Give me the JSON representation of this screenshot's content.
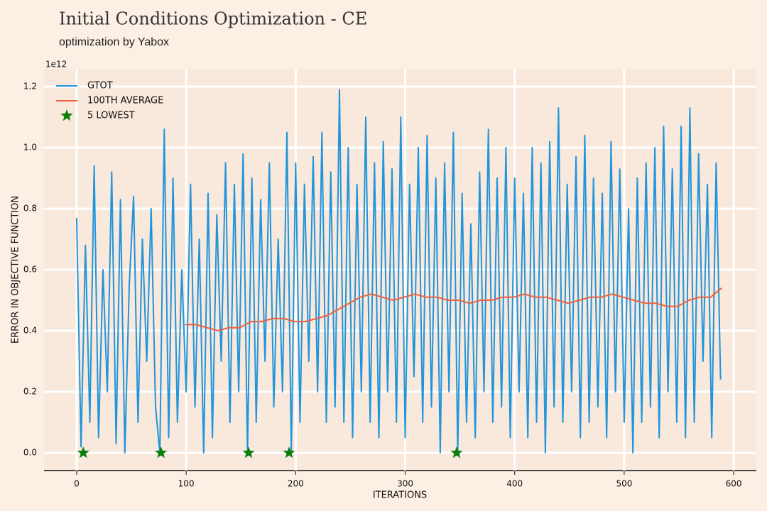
{
  "chart_data": {
    "type": "line",
    "title": "Initial Conditions Optimization - CE",
    "subtitle": "optimization by Yabox",
    "xlabel": "ITERATIONS",
    "ylabel": "ERROR IN OBJECTIVE FUNCTION",
    "y_offset_label": "1e12",
    "xlim": [
      -29.8,
      620.7
    ],
    "ylim": [
      -0.058,
      1.258
    ],
    "xticks": [
      0,
      100,
      200,
      300,
      400,
      500,
      600
    ],
    "yticks": [
      {
        "value": 0,
        "label": "0.0"
      },
      0.2,
      0.4,
      0.6,
      0.8,
      {
        "value": 1,
        "label": "1.0"
      },
      1.2
    ],
    "grid": true,
    "legend": "upper left",
    "series": [
      {
        "name": "GTOT",
        "color": "#1f95dc",
        "x": [
          0,
          4,
          8,
          12,
          16,
          20,
          24,
          28,
          32,
          36,
          40,
          44,
          48,
          52,
          56,
          60,
          64,
          68,
          72,
          76,
          80,
          84,
          88,
          92,
          96,
          100,
          104,
          108,
          112,
          116,
          120,
          124,
          128,
          132,
          136,
          140,
          144,
          148,
          152,
          156,
          160,
          164,
          168,
          172,
          176,
          180,
          184,
          188,
          192,
          196,
          200,
          204,
          208,
          212,
          216,
          220,
          224,
          228,
          232,
          236,
          240,
          244,
          248,
          252,
          256,
          260,
          264,
          268,
          272,
          276,
          280,
          284,
          288,
          292,
          296,
          300,
          304,
          308,
          312,
          316,
          320,
          324,
          328,
          332,
          336,
          340,
          344,
          348,
          352,
          356,
          360,
          364,
          368,
          372,
          376,
          380,
          384,
          388,
          392,
          396,
          400,
          404,
          408,
          412,
          416,
          420,
          424,
          428,
          432,
          436,
          440,
          444,
          448,
          452,
          456,
          460,
          464,
          468,
          472,
          476,
          480,
          484,
          488,
          492,
          496,
          500,
          504,
          508,
          512,
          516,
          520,
          524,
          528,
          532,
          536,
          540,
          544,
          548,
          552,
          556,
          560,
          564,
          568,
          572,
          576,
          580,
          584,
          588
        ],
        "values": [
          0.77,
          0.02,
          0.68,
          0.1,
          0.94,
          0.05,
          0.6,
          0.2,
          0.92,
          0.03,
          0.83,
          0.0,
          0.55,
          0.84,
          0.1,
          0.7,
          0.3,
          0.8,
          0.15,
          0.0,
          1.06,
          0.05,
          0.9,
          0.1,
          0.6,
          0.2,
          0.88,
          0.15,
          0.7,
          0.0,
          0.85,
          0.05,
          0.78,
          0.3,
          0.95,
          0.1,
          0.88,
          0.2,
          0.98,
          0.0,
          0.9,
          0.1,
          0.83,
          0.3,
          0.95,
          0.15,
          0.7,
          0.2,
          1.05,
          0.0,
          0.95,
          0.1,
          0.88,
          0.3,
          0.97,
          0.2,
          1.05,
          0.1,
          0.92,
          0.15,
          1.19,
          0.1,
          1.0,
          0.05,
          0.88,
          0.2,
          1.1,
          0.1,
          0.95,
          0.05,
          1.02,
          0.2,
          0.93,
          0.1,
          1.1,
          0.05,
          0.88,
          0.25,
          1.0,
          0.1,
          1.04,
          0.15,
          0.9,
          0.0,
          0.95,
          0.2,
          1.05,
          0.0,
          0.85,
          0.1,
          0.75,
          0.05,
          0.92,
          0.2,
          1.06,
          0.1,
          0.9,
          0.15,
          1.0,
          0.05,
          0.9,
          0.2,
          0.85,
          0.05,
          1.0,
          0.1,
          0.95,
          0.0,
          1.02,
          0.15,
          1.13,
          0.1,
          0.88,
          0.2,
          0.97,
          0.05,
          1.04,
          0.1,
          0.9,
          0.15,
          0.85,
          0.05,
          1.02,
          0.2,
          0.93,
          0.1,
          0.8,
          0.0,
          0.9,
          0.1,
          0.95,
          0.15,
          1.0,
          0.05,
          1.07,
          0.2,
          0.93,
          0.1,
          1.07,
          0.05,
          1.13,
          0.1,
          0.98,
          0.3,
          0.88,
          0.05,
          0.95,
          0.24
        ]
      },
      {
        "name": "100TH AVERAGE",
        "color": "#f0613d",
        "x": [
          99,
          109,
          119,
          129,
          139,
          149,
          159,
          169,
          179,
          189,
          199,
          209,
          219,
          229,
          239,
          249,
          259,
          269,
          279,
          289,
          299,
          309,
          319,
          329,
          339,
          349,
          359,
          369,
          379,
          389,
          399,
          409,
          419,
          429,
          439,
          449,
          459,
          469,
          479,
          489,
          499,
          509,
          519,
          529,
          539,
          549,
          559,
          569,
          579,
          589
        ],
        "values": [
          0.42,
          0.42,
          0.41,
          0.4,
          0.41,
          0.41,
          0.43,
          0.43,
          0.44,
          0.44,
          0.43,
          0.43,
          0.44,
          0.45,
          0.47,
          0.49,
          0.51,
          0.52,
          0.51,
          0.5,
          0.51,
          0.52,
          0.51,
          0.51,
          0.5,
          0.5,
          0.49,
          0.5,
          0.5,
          0.51,
          0.51,
          0.52,
          0.51,
          0.51,
          0.5,
          0.49,
          0.5,
          0.51,
          0.51,
          0.52,
          0.51,
          0.5,
          0.49,
          0.49,
          0.48,
          0.48,
          0.5,
          0.51,
          0.51,
          0.54
        ]
      },
      {
        "name": "5 LOWEST",
        "color": "#0a7d0a",
        "type": "scatter",
        "marker": "star",
        "x": [
          6,
          77,
          157,
          194,
          347
        ],
        "values": [
          0,
          0,
          0,
          0,
          0
        ]
      }
    ]
  }
}
